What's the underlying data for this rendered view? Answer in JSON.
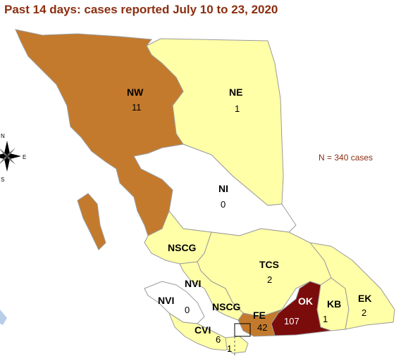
{
  "title": "Past 14 days: cases reported July 10 to 23, 2020",
  "note": "N = 340 cases",
  "compass": {
    "n": "N",
    "e": "E",
    "s": "S"
  },
  "colors": {
    "none": "#ffffff",
    "low": "#ffffa8",
    "mid": "#c47a2c",
    "high": "#7b0c0c",
    "border": "#9a9a9a",
    "water": "#b8cde8"
  },
  "regions": [
    {
      "code": "NW",
      "count": "11"
    },
    {
      "code": "NE",
      "count": "1"
    },
    {
      "code": "NI",
      "count": "0"
    },
    {
      "code": "NSCG",
      "count": ""
    },
    {
      "code": "TCS",
      "count": "2"
    },
    {
      "code": "NVI",
      "count": ""
    },
    {
      "code": "NVI",
      "count": "0"
    },
    {
      "code": "NSCG",
      "count": ""
    },
    {
      "code": "FE",
      "count": "42"
    },
    {
      "code": "OK",
      "count": "107"
    },
    {
      "code": "KB",
      "count": "1"
    },
    {
      "code": "EK",
      "count": "2"
    },
    {
      "code": "CVI",
      "count": "6"
    },
    {
      "code": "",
      "count": "1"
    }
  ]
}
